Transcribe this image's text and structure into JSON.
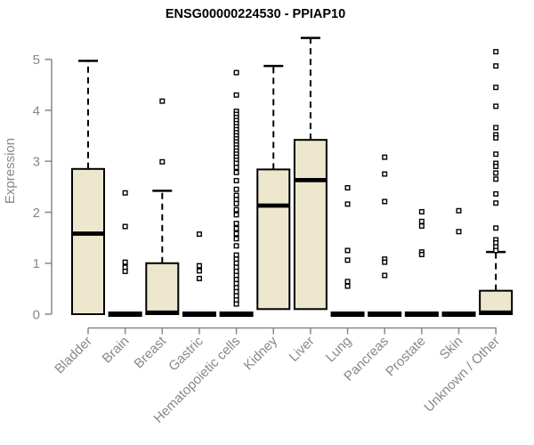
{
  "title": "ENSG00000224530 - PPIAP10",
  "colors": {
    "box_fill": "#EDE8CD",
    "box_stroke": "#000000",
    "axis": "#888888",
    "title_color": "#000000",
    "background": "#FFFFFF"
  },
  "chart_data": {
    "type": "boxplot",
    "title": "ENSG00000224530 - PPIAP10",
    "xlabel": "",
    "ylabel": "Expression",
    "ylim": [
      0,
      5
    ],
    "yticks": [
      0,
      1,
      2,
      3,
      4,
      5
    ],
    "grid": false,
    "legend": "none",
    "categories": [
      "Bladder",
      "Brain",
      "Breast",
      "Gastric",
      "Hematopoietic cells",
      "Kidney",
      "Liver",
      "Lung",
      "Pancreas",
      "Prostate",
      "Skin",
      "Unknown / Other"
    ],
    "series": [
      {
        "name": "Bladder",
        "q1": 0,
        "median": 1.58,
        "q3": 2.85,
        "whisker_low": 0,
        "whisker_high": 4.97,
        "outliers": []
      },
      {
        "name": "Brain",
        "q1": 0,
        "median": 0,
        "q3": 0,
        "whisker_low": 0,
        "whisker_high": 0,
        "outliers": [
          2.38,
          1.72,
          1.02,
          0.92,
          0.84
        ]
      },
      {
        "name": "Breast",
        "q1": 0,
        "median": 0.03,
        "q3": 1.0,
        "whisker_low": 0,
        "whisker_high": 2.42,
        "outliers": [
          4.18,
          2.99
        ]
      },
      {
        "name": "Gastric",
        "q1": 0,
        "median": 0,
        "q3": 0,
        "whisker_low": 0,
        "whisker_high": 0,
        "outliers": [
          1.57,
          0.95,
          0.85,
          0.7
        ]
      },
      {
        "name": "Hematopoietic cells",
        "q1": 0,
        "median": 0,
        "q3": 0,
        "whisker_low": 0,
        "whisker_high": 0,
        "outliers": [
          4.74,
          4.3,
          3.98,
          3.92,
          3.86,
          3.8,
          3.74,
          3.68,
          3.62,
          3.56,
          3.5,
          3.44,
          3.38,
          3.32,
          3.26,
          3.2,
          3.14,
          3.08,
          3.02,
          2.96,
          2.88,
          2.78,
          2.62,
          2.45,
          2.33,
          2.25,
          2.17,
          2.05,
          1.95,
          1.78,
          1.68,
          1.58,
          1.48,
          1.34,
          1.16,
          1.08,
          1.0,
          0.92,
          0.84,
          0.76,
          0.68,
          0.6,
          0.52,
          0.44,
          0.36,
          0.28,
          0.2
        ]
      },
      {
        "name": "Kidney",
        "q1": 0.1,
        "median": 2.13,
        "q3": 2.84,
        "whisker_low": 0.1,
        "whisker_high": 4.87,
        "outliers": []
      },
      {
        "name": "Liver",
        "q1": 0.1,
        "median": 2.63,
        "q3": 3.42,
        "whisker_low": 0.1,
        "whisker_high": 5.42,
        "outliers": []
      },
      {
        "name": "Lung",
        "q1": 0,
        "median": 0,
        "q3": 0,
        "whisker_low": 0,
        "whisker_high": 0,
        "outliers": [
          2.48,
          2.16,
          1.25,
          1.06,
          0.64,
          0.55
        ]
      },
      {
        "name": "Pancreas",
        "q1": 0,
        "median": 0,
        "q3": 0,
        "whisker_low": 0,
        "whisker_high": 0,
        "outliers": [
          3.08,
          2.75,
          2.21,
          1.08,
          1.02,
          0.76
        ]
      },
      {
        "name": "Prostate",
        "q1": 0,
        "median": 0,
        "q3": 0,
        "whisker_low": 0,
        "whisker_high": 0,
        "outliers": [
          2.01,
          1.82,
          1.73,
          1.22,
          1.17
        ]
      },
      {
        "name": "Skin",
        "q1": 0,
        "median": 0,
        "q3": 0,
        "whisker_low": 0,
        "whisker_high": 0,
        "outliers": [
          2.03,
          1.62
        ]
      },
      {
        "name": "Unknown / Other",
        "q1": 0,
        "median": 0.03,
        "q3": 0.46,
        "whisker_low": 0,
        "whisker_high": 1.22,
        "outliers": [
          5.15,
          4.87,
          4.45,
          4.08,
          3.66,
          3.52,
          3.46,
          3.14,
          2.96,
          2.9,
          2.77,
          2.65,
          2.36,
          2.18,
          1.69,
          1.46,
          1.4,
          1.32,
          1.25
        ]
      }
    ]
  }
}
